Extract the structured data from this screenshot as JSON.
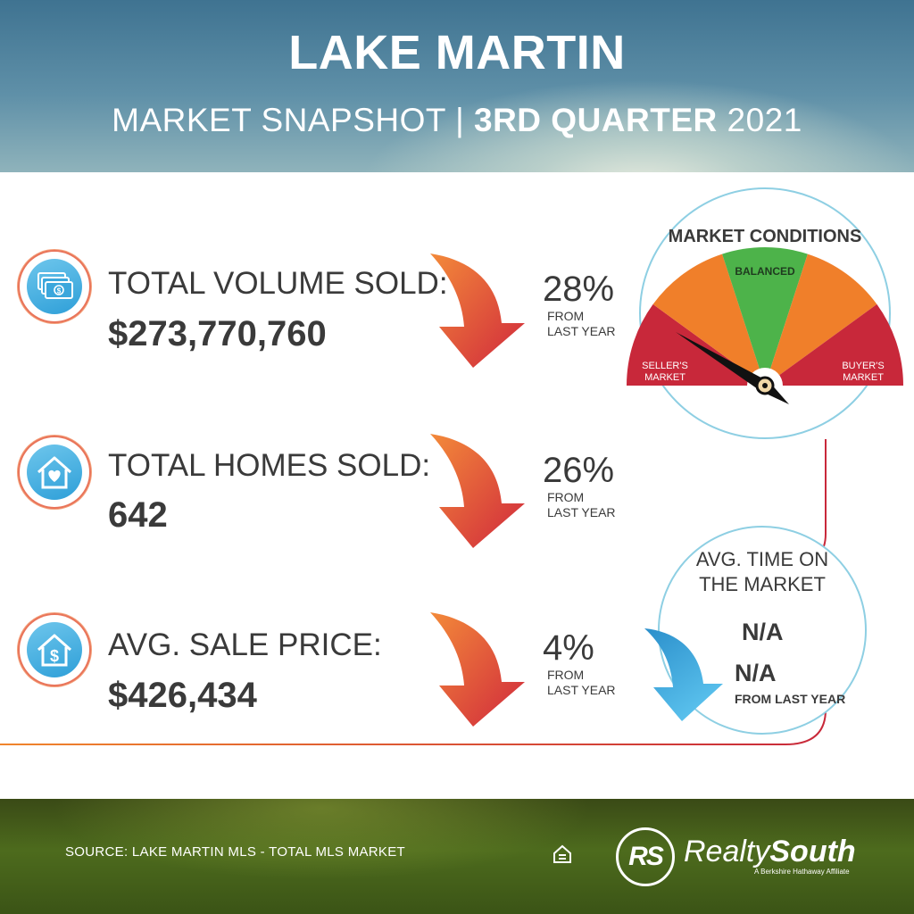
{
  "header": {
    "title": "LAKE MARTIN",
    "subtitle_light": "MARKET SNAPSHOT | ",
    "subtitle_bold": "3RD QUARTER",
    "subtitle_year": " 2021"
  },
  "rows": [
    {
      "label": "TOTAL VOLUME SOLD:",
      "value": "$273,770,760",
      "change": "28%",
      "change_note_1": "FROM",
      "change_note_2": "LAST YEAR",
      "icon": "money-stack-icon",
      "trend": "down"
    },
    {
      "label": "TOTAL HOMES SOLD:",
      "value": "642",
      "change": "26%",
      "change_note_1": "FROM",
      "change_note_2": "LAST YEAR",
      "icon": "house-heart-icon",
      "trend": "down"
    },
    {
      "label": "AVG. SALE PRICE:",
      "value": "$426,434",
      "change": "4%",
      "change_note_1": "FROM",
      "change_note_2": "LAST YEAR",
      "icon": "house-dollar-icon",
      "trend": "down"
    }
  ],
  "gauge": {
    "title": "MARKET CONDITIONS",
    "center_label": "BALANCED",
    "left_label_1": "SELLER'S",
    "left_label_2": "MARKET",
    "right_label_1": "BUYER'S",
    "right_label_2": "MARKET",
    "needle": "seller's market"
  },
  "time_on_market": {
    "title_1": "AVG. TIME ON",
    "title_2": "THE MARKET",
    "value": "N/A",
    "change": "N/A",
    "change_note": "FROM LAST YEAR",
    "trend": "down"
  },
  "footer": {
    "source": "SOURCE: LAKE MARTIN MLS - TOTAL MLS MARKET",
    "brand": "RealtySouth",
    "brand_light": "Realty",
    "brand_bold": "South",
    "brand_tagline": "A Berkshire Hathaway Affiliate",
    "logo_monogram": "RS",
    "housing_icon": "equal-housing-icon"
  },
  "colors": {
    "accent_red": "#c8283a",
    "accent_orange": "#f07f2a",
    "accent_green": "#4db34a",
    "accent_blue": "#3ea8dc",
    "text": "#3a3a3a"
  }
}
